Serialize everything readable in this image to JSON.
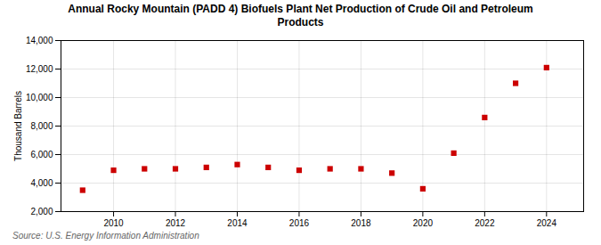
{
  "chart_data": {
    "type": "scatter",
    "title": "Annual Rocky Mountain (PADD 4) Biofuels Plant Net Production of Crude Oil and Petroleum\nProducts",
    "ylabel": "Thousand Barrels",
    "source": "Source: U.S. Energy Information Administration",
    "x": [
      2009,
      2010,
      2011,
      2012,
      2013,
      2014,
      2015,
      2016,
      2017,
      2018,
      2019,
      2020,
      2021,
      2022,
      2023,
      2024
    ],
    "values": [
      3500,
      4900,
      5000,
      5000,
      5100,
      5300,
      5100,
      4900,
      5000,
      5000,
      4700,
      3600,
      6100,
      8600,
      11000,
      12100
    ],
    "color": "#cc0000",
    "marker": "square",
    "xlim": [
      2008.3,
      2025.2
    ],
    "xticks": [
      2010,
      2012,
      2014,
      2016,
      2018,
      2020,
      2022,
      2024
    ],
    "ylim": [
      2000,
      14000
    ],
    "yticks": [
      {
        "value": 2000,
        "label": "2,000"
      },
      {
        "value": 4000,
        "label": "4,000"
      },
      {
        "value": 6000,
        "label": "6,000"
      },
      {
        "value": 8000,
        "label": "8,000"
      },
      {
        "value": 10000,
        "label": "10,000"
      },
      {
        "value": 12000,
        "label": "12,000"
      },
      {
        "value": 14000,
        "label": "14,000"
      }
    ],
    "grid": true
  }
}
